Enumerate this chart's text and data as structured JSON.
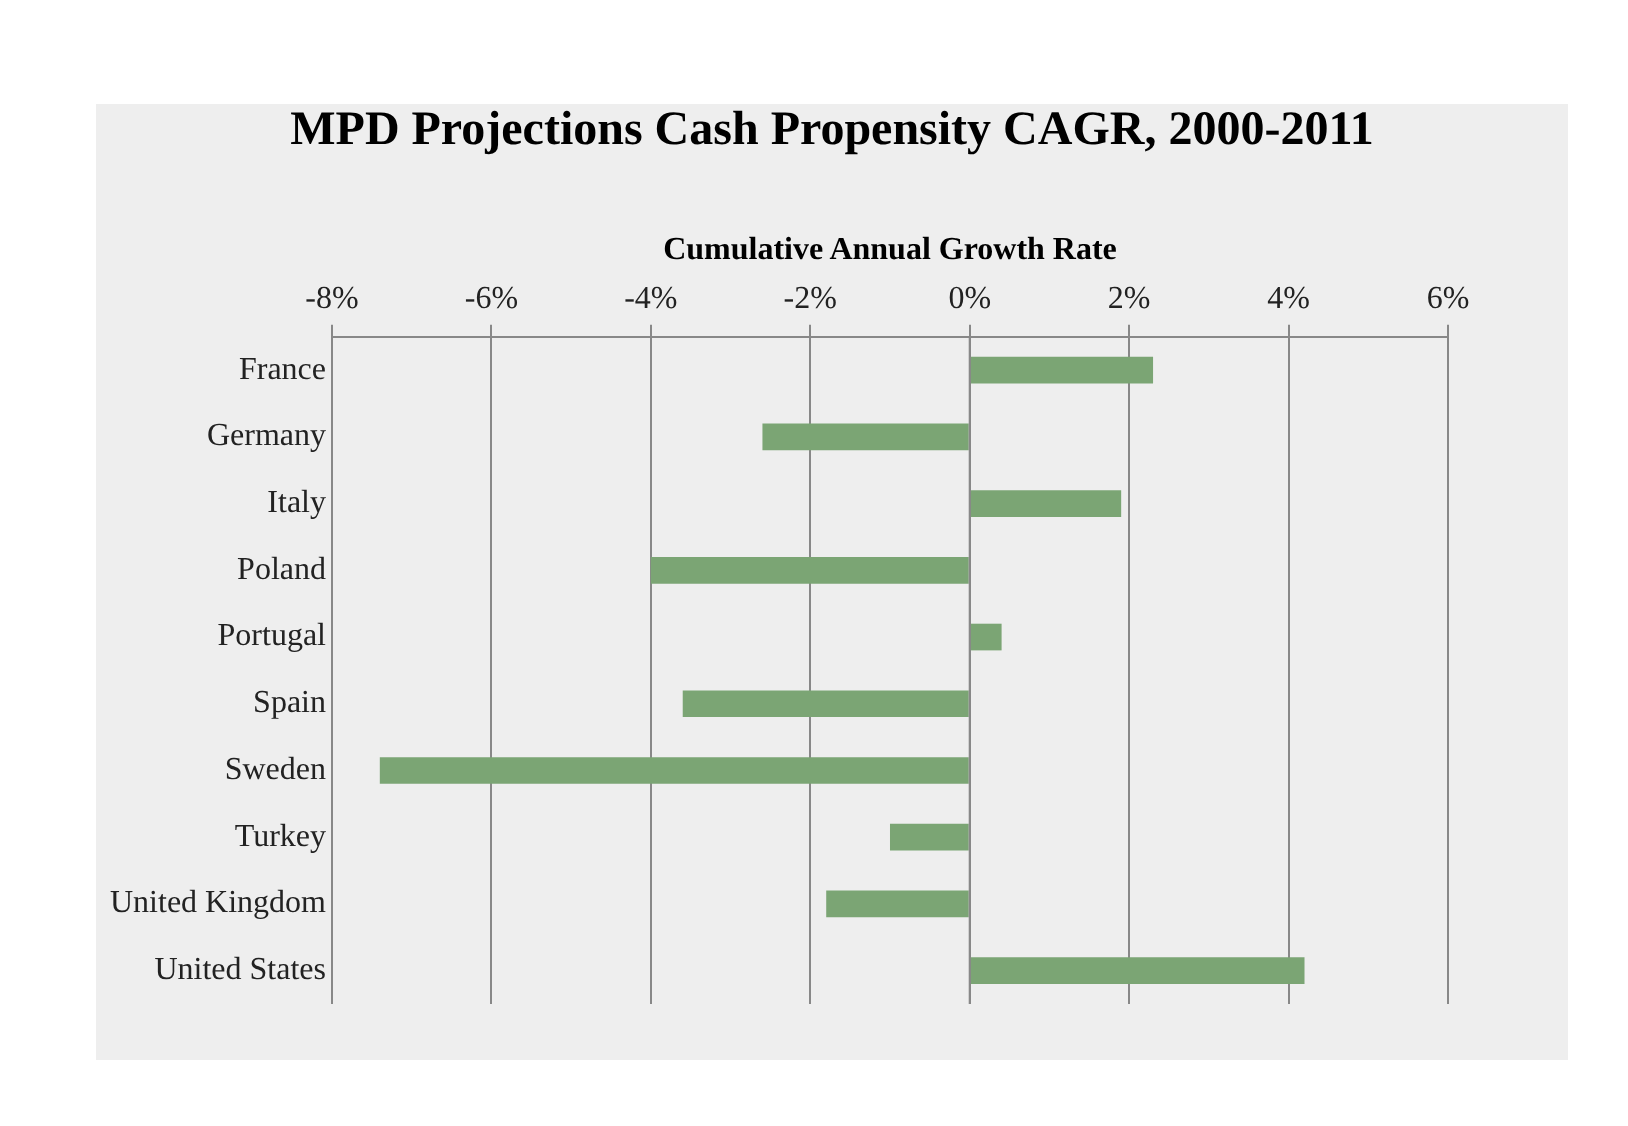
{
  "chart_data": {
    "type": "bar",
    "orientation": "horizontal",
    "title": "MPD Projections Cash Propensity CAGR, 2000-2011",
    "xlabel": "Cumulative Annual Growth Rate",
    "categories": [
      "France",
      "Germany",
      "Italy",
      "Poland",
      "Portugal",
      "Spain",
      "Sweden",
      "Turkey",
      "United Kingdom",
      "United States"
    ],
    "values": [
      2.3,
      -2.6,
      1.9,
      -4.0,
      0.4,
      -3.6,
      -7.4,
      -1.0,
      -1.8,
      4.2
    ],
    "color": "#7ba574",
    "xlim": [
      -8,
      6
    ],
    "xticks": [
      {
        "value": -8,
        "label": "-8%"
      },
      {
        "value": -6,
        "label": "-6%"
      },
      {
        "value": -4,
        "label": "-4%"
      },
      {
        "value": -2,
        "label": "-2%"
      },
      {
        "value": 0,
        "label": "0%"
      },
      {
        "value": 2,
        "label": "2%"
      },
      {
        "value": 4,
        "label": "4%"
      },
      {
        "value": 6,
        "label": "6%"
      }
    ],
    "grid": "x"
  }
}
